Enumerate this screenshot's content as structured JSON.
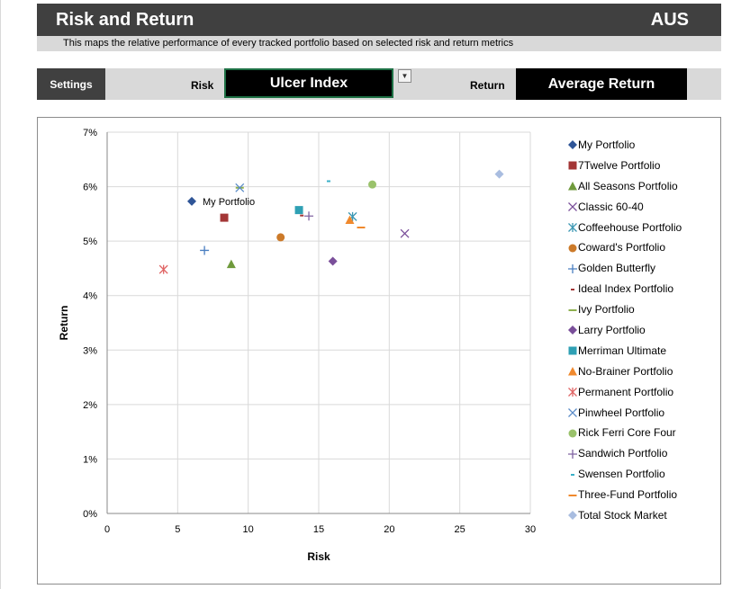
{
  "header": {
    "title": "Risk and Return",
    "region": "AUS",
    "subtitle": "This maps the relative performance of every tracked portfolio based on selected risk and return metrics"
  },
  "settings": {
    "button_label": "Settings",
    "risk_label": "Risk",
    "risk_value": "Ulcer Index",
    "return_label": "Return",
    "return_value": "Average Return"
  },
  "chart_data": {
    "type": "scatter",
    "xlabel": "Risk",
    "ylabel": "Return",
    "xlim": [
      0,
      30
    ],
    "ylim": [
      0,
      7
    ],
    "x_ticks": [
      "0",
      "5",
      "10",
      "15",
      "20",
      "25",
      "30"
    ],
    "y_ticks": [
      "0%",
      "1%",
      "2%",
      "3%",
      "4%",
      "5%",
      "6%",
      "7%"
    ],
    "grid": true,
    "legend_position": "right",
    "series": [
      {
        "name": "My Portfolio",
        "marker": "diamond",
        "color": "#2f5597",
        "x": 6.0,
        "y": 5.73,
        "annotation": "My Portfolio"
      },
      {
        "name": "7Twelve Portfolio",
        "marker": "square",
        "color": "#a33636",
        "x": 8.3,
        "y": 5.43
      },
      {
        "name": "All Seasons Portfolio",
        "marker": "triangle",
        "color": "#6f9a3c",
        "x": 8.8,
        "y": 4.58
      },
      {
        "name": "Classic 60-40",
        "marker": "x",
        "color": "#7a4f9a",
        "x": 21.1,
        "y": 5.14
      },
      {
        "name": "Coffeehouse Portfolio",
        "marker": "star",
        "color": "#3d98b4",
        "x": 17.4,
        "y": 5.45
      },
      {
        "name": "Coward's Portfolio",
        "marker": "circle",
        "color": "#cc7a29",
        "x": 12.3,
        "y": 5.07
      },
      {
        "name": "Golden Butterfly",
        "marker": "plus",
        "color": "#4a7fc1",
        "x": 6.9,
        "y": 4.83
      },
      {
        "name": "Ideal Index Portfolio",
        "marker": "dash",
        "color": "#a33636",
        "x": 13.8,
        "y": 5.47
      },
      {
        "name": "Ivy Portfolio",
        "marker": "hline",
        "color": "#8eb04f",
        "x": 9.4,
        "y": 5.98
      },
      {
        "name": "Larry Portfolio",
        "marker": "diamond",
        "color": "#7a4f9a",
        "x": 16.0,
        "y": 4.63
      },
      {
        "name": "Merriman Ultimate",
        "marker": "square",
        "color": "#2fa0b4",
        "x": 13.6,
        "y": 5.57
      },
      {
        "name": "No-Brainer Portfolio",
        "marker": "triangle",
        "color": "#f0892d",
        "x": 17.2,
        "y": 5.39
      },
      {
        "name": "Permanent Portfolio",
        "marker": "star",
        "color": "#e06666",
        "x": 4.0,
        "y": 4.48
      },
      {
        "name": "Pinwheel Portfolio",
        "marker": "x",
        "color": "#5b8cc8",
        "x": 9.4,
        "y": 5.98
      },
      {
        "name": "Rick Ferri Core Four",
        "marker": "circle",
        "color": "#9ac26b",
        "x": 18.8,
        "y": 6.04
      },
      {
        "name": "Sandwich Portfolio",
        "marker": "plus",
        "color": "#8064a2",
        "x": 14.3,
        "y": 5.46
      },
      {
        "name": "Swensen Portfolio",
        "marker": "dash",
        "color": "#3ab0c8",
        "x": 15.7,
        "y": 6.1
      },
      {
        "name": "Three-Fund Portfolio",
        "marker": "hline",
        "color": "#f0892d",
        "x": 18.0,
        "y": 5.25
      },
      {
        "name": "Total Stock Market",
        "marker": "diamond",
        "color": "#a9bde0",
        "x": 27.8,
        "y": 6.23
      }
    ]
  }
}
